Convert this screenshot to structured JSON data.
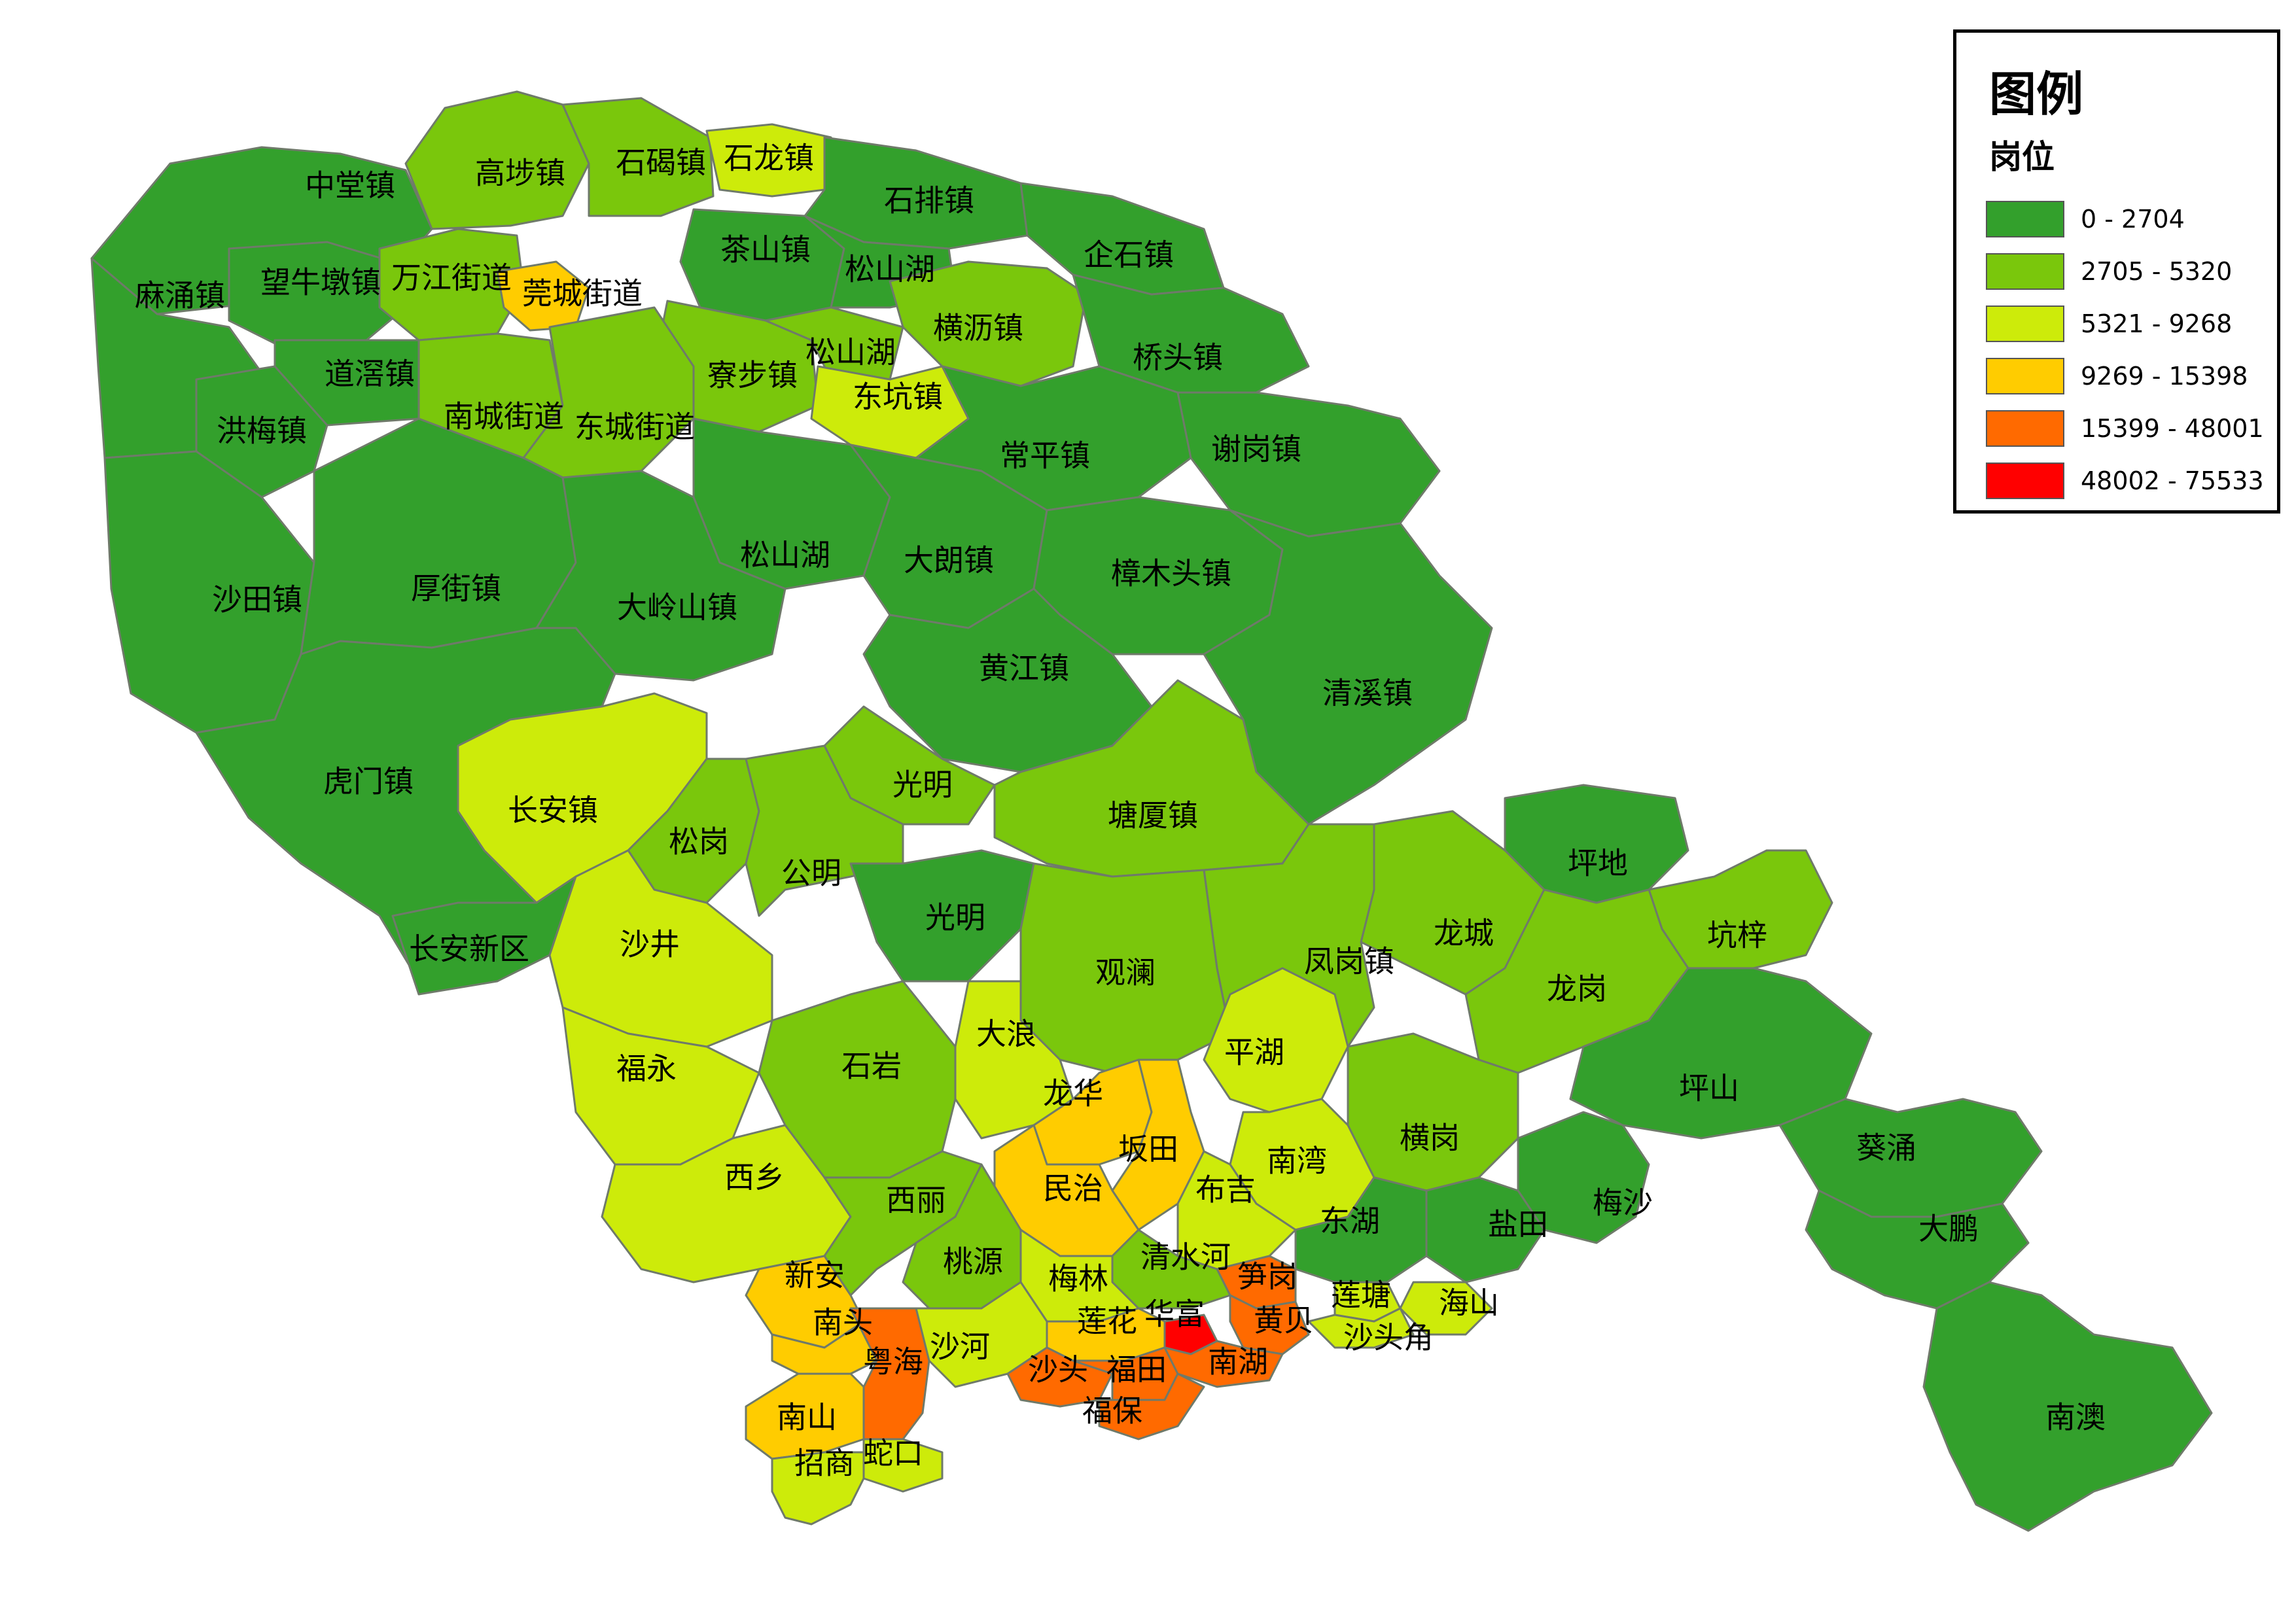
{
  "legend": {
    "title": "图例",
    "subtitle": "岗位",
    "classes": [
      {
        "label": "0 - 2704",
        "color": "#33a02c"
      },
      {
        "label": "2705 - 5320",
        "color": "#7ac70c"
      },
      {
        "label": "5321 - 9268",
        "color": "#cdeb0a"
      },
      {
        "label": "9269 - 15398",
        "color": "#ffcc00"
      },
      {
        "label": "15399 - 48001",
        "color": "#ff6a00"
      },
      {
        "label": "48002 - 75533",
        "color": "#ff0000"
      }
    ]
  },
  "regions": [
    {
      "name": "中堂镇",
      "class": 0
    },
    {
      "name": "高埗镇",
      "class": 1
    },
    {
      "name": "石碣镇",
      "class": 1
    },
    {
      "name": "石龙镇",
      "class": 2
    },
    {
      "name": "石排镇",
      "class": 0
    },
    {
      "name": "麻涌镇",
      "class": 0
    },
    {
      "name": "望牛墩镇",
      "class": 0
    },
    {
      "name": "万江街道",
      "class": 1
    },
    {
      "name": "莞城街道",
      "class": 3
    },
    {
      "name": "茶山镇",
      "class": 0
    },
    {
      "name": "松山湖",
      "class": 0
    },
    {
      "name": "企石镇",
      "class": 0
    },
    {
      "name": "横沥镇",
      "class": 1
    },
    {
      "name": "道滘镇",
      "class": 0
    },
    {
      "name": "寮步镇",
      "class": 1
    },
    {
      "name": "松山湖",
      "class": 1
    },
    {
      "name": "桥头镇",
      "class": 0
    },
    {
      "name": "东坑镇",
      "class": 2
    },
    {
      "name": "南城街道",
      "class": 1
    },
    {
      "name": "东城街道",
      "class": 1
    },
    {
      "name": "洪梅镇",
      "class": 0
    },
    {
      "name": "常平镇",
      "class": 0
    },
    {
      "name": "谢岗镇",
      "class": 0
    },
    {
      "name": "松山湖",
      "class": 0
    },
    {
      "name": "大朗镇",
      "class": 0
    },
    {
      "name": "沙田镇",
      "class": 0
    },
    {
      "name": "厚街镇",
      "class": 0
    },
    {
      "name": "樟木头镇",
      "class": 0
    },
    {
      "name": "大岭山镇",
      "class": 0
    },
    {
      "name": "黄江镇",
      "class": 0
    },
    {
      "name": "清溪镇",
      "class": 0
    },
    {
      "name": "虎门镇",
      "class": 0
    },
    {
      "name": "光明",
      "class": 1
    },
    {
      "name": "长安镇",
      "class": 2
    },
    {
      "name": "塘厦镇",
      "class": 1
    },
    {
      "name": "松岗",
      "class": 1
    },
    {
      "name": "公明",
      "class": 1
    },
    {
      "name": "坪地",
      "class": 0
    },
    {
      "name": "光明",
      "class": 0
    },
    {
      "name": "长安新区",
      "class": 0
    },
    {
      "name": "沙井",
      "class": 2
    },
    {
      "name": "龙城",
      "class": 1
    },
    {
      "name": "坑梓",
      "class": 1
    },
    {
      "name": "凤岗镇",
      "class": 1
    },
    {
      "name": "观澜",
      "class": 1
    },
    {
      "name": "龙岗",
      "class": 1
    },
    {
      "name": "大浪",
      "class": 2
    },
    {
      "name": "平湖",
      "class": 2
    },
    {
      "name": "福永",
      "class": 2
    },
    {
      "name": "石岩",
      "class": 1
    },
    {
      "name": "坪山",
      "class": 0
    },
    {
      "name": "龙华",
      "class": 3
    },
    {
      "name": "横岗",
      "class": 1
    },
    {
      "name": "坂田",
      "class": 3
    },
    {
      "name": "葵涌",
      "class": 0
    },
    {
      "name": "南湾",
      "class": 2
    },
    {
      "name": "西乡",
      "class": 2
    },
    {
      "name": "民治",
      "class": 3
    },
    {
      "name": "布吉",
      "class": 2
    },
    {
      "name": "梅沙",
      "class": 0
    },
    {
      "name": "西丽",
      "class": 1
    },
    {
      "name": "盐田",
      "class": 0
    },
    {
      "name": "大鹏",
      "class": 0
    },
    {
      "name": "东湖",
      "class": 0
    },
    {
      "name": "新安",
      "class": 3
    },
    {
      "name": "桃源",
      "class": 1
    },
    {
      "name": "清水河",
      "class": 1
    },
    {
      "name": "梅林",
      "class": 2
    },
    {
      "name": "笋岗",
      "class": 4
    },
    {
      "name": "海山",
      "class": 2
    },
    {
      "name": "莲塘",
      "class": 2
    },
    {
      "name": "南头",
      "class": 3
    },
    {
      "name": "华富",
      "class": 5
    },
    {
      "name": "莲花",
      "class": 3
    },
    {
      "name": "黄贝",
      "class": 4
    },
    {
      "name": "粤海",
      "class": 4
    },
    {
      "name": "沙河",
      "class": 2
    },
    {
      "name": "沙头角",
      "class": 2
    },
    {
      "name": "沙头",
      "class": 4
    },
    {
      "name": "福田",
      "class": 4
    },
    {
      "name": "南湖",
      "class": 4
    },
    {
      "name": "福保",
      "class": 4
    },
    {
      "name": "南山",
      "class": 3
    },
    {
      "name": "南澳",
      "class": 0
    },
    {
      "name": "蛇口",
      "class": 2
    },
    {
      "name": "招商",
      "class": 2
    }
  ]
}
